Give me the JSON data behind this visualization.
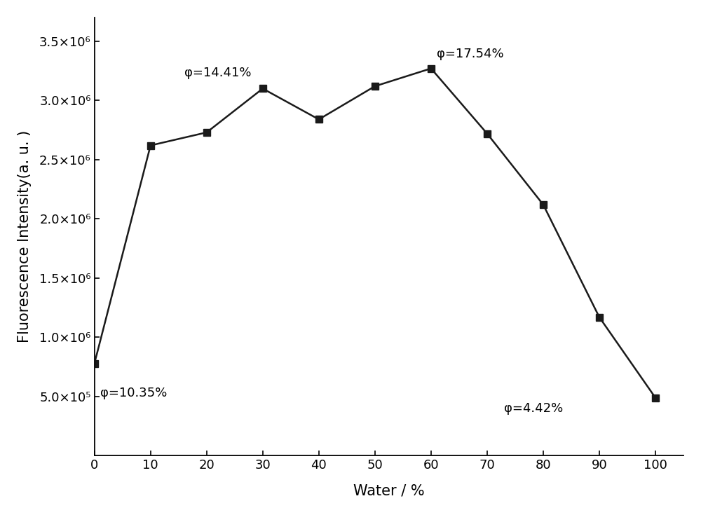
{
  "x": [
    0,
    10,
    20,
    30,
    40,
    50,
    60,
    70,
    80,
    90,
    100
  ],
  "y": [
    780000,
    2620000,
    2730000,
    3100000,
    2840000,
    3120000,
    3270000,
    2720000,
    2120000,
    1170000,
    490000
  ],
  "xlabel": "Water / %",
  "ylabel": "Fluorescence Intensity(a. u. )",
  "ylim": [
    0,
    3700000.0
  ],
  "xlim": [
    0,
    105
  ],
  "xticks": [
    0,
    10,
    20,
    30,
    40,
    50,
    60,
    70,
    80,
    90,
    100
  ],
  "line_color": "#1a1a1a",
  "marker": "s",
  "marker_size": 7,
  "line_width": 1.8,
  "background_color": "#ffffff",
  "ytick_values": [
    500000,
    1000000,
    1500000,
    2000000,
    2500000,
    3000000,
    3500000
  ],
  "label_fontsize": 15,
  "tick_fontsize": 13,
  "annot_fontsize": 13
}
